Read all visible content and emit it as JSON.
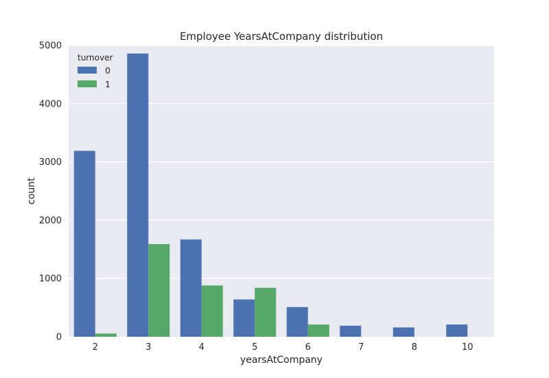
{
  "chart_data": {
    "type": "bar",
    "title": "Employee YearsAtCompany distribution",
    "xlabel": "yearsAtCompany",
    "ylabel": "count",
    "categories": [
      "2",
      "3",
      "4",
      "5",
      "6",
      "7",
      "8",
      "10"
    ],
    "series": [
      {
        "name": "0",
        "color": "#4c72b0",
        "values": [
          3190,
          4860,
          1670,
          640,
          510,
          190,
          160,
          210
        ]
      },
      {
        "name": "1",
        "color": "#55a868",
        "values": [
          55,
          1590,
          880,
          840,
          210,
          0,
          0,
          0
        ]
      }
    ],
    "ylim": [
      0,
      5000
    ],
    "yticks": [
      "0",
      "1000",
      "2000",
      "3000",
      "4000",
      "5000"
    ],
    "grid": true,
    "background_color": "#eaeaf2",
    "legend": {
      "title": "turnover",
      "position": "top-left"
    }
  }
}
